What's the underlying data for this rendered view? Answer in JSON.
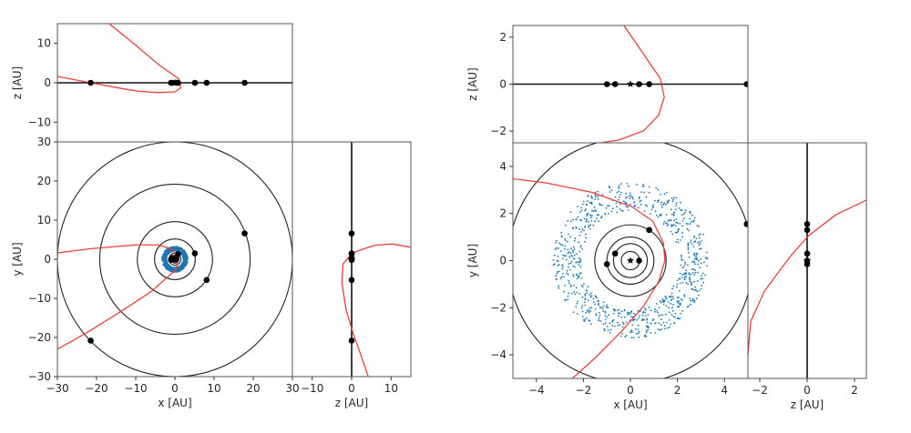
{
  "chart_data": [
    {
      "type": "scatter",
      "panels": {
        "xy": {
          "xlabel": "x [AU]",
          "ylabel": "y [AU]",
          "xlim": [
            -30,
            30
          ],
          "ylim": [
            -30,
            30
          ],
          "xticks": [
            -30,
            -20,
            -10,
            0,
            10,
            20,
            30
          ],
          "yticks": [
            -30,
            -20,
            -10,
            0,
            10,
            20,
            30
          ]
        },
        "xz": {
          "ylabel": "z [AU]",
          "xlim": [
            -30,
            30
          ],
          "ylim": [
            -15,
            15
          ],
          "yticks": [
            -10,
            0,
            10
          ]
        },
        "yz": {
          "xlabel": "z [AU]",
          "xlim": [
            -15,
            15
          ],
          "ylim": [
            -30,
            30
          ],
          "xticks": [
            -10,
            0,
            10
          ]
        }
      },
      "orbit_radii": [
        0.39,
        0.72,
        1.0,
        1.52,
        5.2,
        9.6,
        19.2,
        30.0
      ],
      "planets": [
        {
          "x": 0.37,
          "y": 0.0,
          "z": 0
        },
        {
          "x": -0.65,
          "y": 0.3,
          "z": 0
        },
        {
          "x": -1.0,
          "y": -0.15,
          "z": 0
        },
        {
          "x": 0.8,
          "y": 1.3,
          "z": 0
        },
        {
          "x": 5.1,
          "y": 1.5,
          "z": 0
        },
        {
          "x": 8.1,
          "y": -5.3,
          "z": 0
        },
        {
          "x": 17.8,
          "y": 6.6,
          "z": 0
        },
        {
          "x": -21.5,
          "y": -20.8,
          "z": 0
        }
      ],
      "star": {
        "x": 0,
        "y": 0,
        "z": 0
      },
      "belt": {
        "r_inner": 2.1,
        "r_outer": 3.3,
        "count": 800,
        "color": "#1f77b4"
      },
      "trajectory_color": "#e8413c",
      "trajectory": {
        "xy": [
          [
            -30,
            1.6
          ],
          [
            -21.5,
            2.7
          ],
          [
            -9.8,
            3.7
          ],
          [
            -4.4,
            3.7
          ],
          [
            -0.9,
            2.7
          ],
          [
            1.0,
            0.4
          ],
          [
            0.2,
            -2.7
          ],
          [
            -6,
            -8.2
          ],
          [
            -13.7,
            -13.3
          ],
          [
            -23,
            -19.1
          ],
          [
            -30,
            -23
          ]
        ],
        "xz": [
          [
            -16.8,
            15
          ],
          [
            -10,
            9.5
          ],
          [
            -4,
            4.5
          ],
          [
            1,
            1
          ],
          [
            1.5,
            -1.3
          ],
          [
            0,
            -2.3
          ],
          [
            -4.4,
            -2.5
          ],
          [
            -9.8,
            -2.1
          ],
          [
            -15,
            -1.2
          ],
          [
            -21.5,
            0
          ],
          [
            -30,
            1.6
          ]
        ],
        "yz": [
          [
            14.8,
            3.1
          ],
          [
            10.2,
            3.9
          ],
          [
            6,
            3.6
          ],
          [
            3.2,
            2.7
          ],
          [
            0.2,
            1.6
          ],
          [
            -2.2,
            -1.2
          ],
          [
            -2.5,
            -5.9
          ],
          [
            -1.4,
            -12.9
          ],
          [
            0.2,
            -18.4
          ],
          [
            2.1,
            -23.8
          ],
          [
            4.2,
            -30
          ]
        ]
      }
    },
    {
      "type": "scatter",
      "panels": {
        "xy": {
          "xlabel": "x [AU]",
          "ylabel": "y [AU]",
          "xlim": [
            -5,
            5
          ],
          "ylim": [
            -5,
            5
          ],
          "xticks": [
            -4,
            -2,
            0,
            2,
            4
          ],
          "yticks": [
            -4,
            -2,
            0,
            2,
            4
          ]
        },
        "xz": {
          "ylabel": "z [AU]",
          "xlim": [
            -5,
            5
          ],
          "ylim": [
            -2.5,
            2.5
          ],
          "yticks": [
            -2,
            0,
            2
          ]
        },
        "yz": {
          "xlabel": "z [AU]",
          "xlim": [
            -2.5,
            2.5
          ],
          "ylim": [
            -5,
            5
          ],
          "xticks": [
            -2,
            0,
            2
          ]
        }
      },
      "orbit_radii": [
        0.39,
        0.72,
        1.0,
        1.52,
        5.2
      ],
      "planets": [
        {
          "x": 0.37,
          "y": 0.0,
          "z": 0
        },
        {
          "x": -0.65,
          "y": 0.3,
          "z": 0
        },
        {
          "x": -1.0,
          "y": -0.15,
          "z": 0
        },
        {
          "x": 0.8,
          "y": 1.3,
          "z": 0
        },
        {
          "x": 4.95,
          "y": 1.55,
          "z": 0
        }
      ],
      "star": {
        "x": 0,
        "y": 0,
        "z": 0
      },
      "belt": {
        "r_inner": 2.1,
        "r_outer": 3.3,
        "count": 800,
        "color": "#1f77b4"
      },
      "trajectory_color": "#e8413c",
      "trajectory": {
        "xy": [
          [
            -5.03,
            3.48
          ],
          [
            -3.6,
            3.3
          ],
          [
            -1.65,
            2.9
          ],
          [
            0.04,
            2.3
          ],
          [
            0.95,
            1.68
          ],
          [
            1.4,
            0.77
          ],
          [
            1.47,
            0
          ],
          [
            1.2,
            -0.9
          ],
          [
            0.56,
            -1.94
          ],
          [
            -0.35,
            -2.97
          ],
          [
            -1.5,
            -4.13
          ],
          [
            -2.5,
            -5.03
          ]
        ],
        "xz": [
          [
            -0.29,
            2.52
          ],
          [
            0.56,
            1.28
          ],
          [
            1.27,
            0.24
          ],
          [
            1.44,
            -0.55
          ],
          [
            1.2,
            -1.33
          ],
          [
            0.56,
            -1.99
          ],
          [
            -0.48,
            -2.38
          ],
          [
            -1.52,
            -2.54
          ]
        ],
        "yz": [
          [
            -2.5,
            -4.0
          ],
          [
            -2.38,
            -2.58
          ],
          [
            -1.8,
            -1.29
          ],
          [
            -0.75,
            0.13
          ],
          [
            0.03,
            1.03
          ],
          [
            1.2,
            1.94
          ],
          [
            2.52,
            2.58
          ]
        ]
      }
    }
  ]
}
